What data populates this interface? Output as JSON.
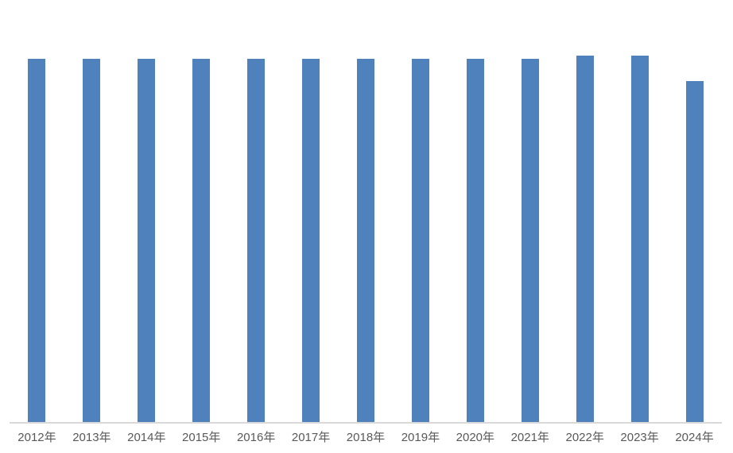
{
  "chart_data": {
    "type": "bar",
    "title": "",
    "xlabel": "",
    "ylabel": "",
    "categories": [
      "2012年",
      "2013年",
      "2014年",
      "2015年",
      "2016年",
      "2017年",
      "2018年",
      "2019年",
      "2020年",
      "2021年",
      "2022年",
      "2023年",
      "2024年"
    ],
    "values": [
      99.1,
      99.1,
      99.1,
      99.1,
      99.1,
      99.1,
      99.1,
      99.1,
      99.1,
      99.1,
      100,
      100,
      92.9
    ],
    "value_note": "No y-axis, gridlines or data labels are visible; values are relative bar heights normalized so the tallest bar (2022/2023) = 100",
    "ylim": [
      0,
      100
    ],
    "grid": false,
    "legend": false,
    "bar_color": "#4F81BD",
    "axis_line_color": "#D9D9D9",
    "label_color": "#595959",
    "background": "#FFFFFF"
  }
}
